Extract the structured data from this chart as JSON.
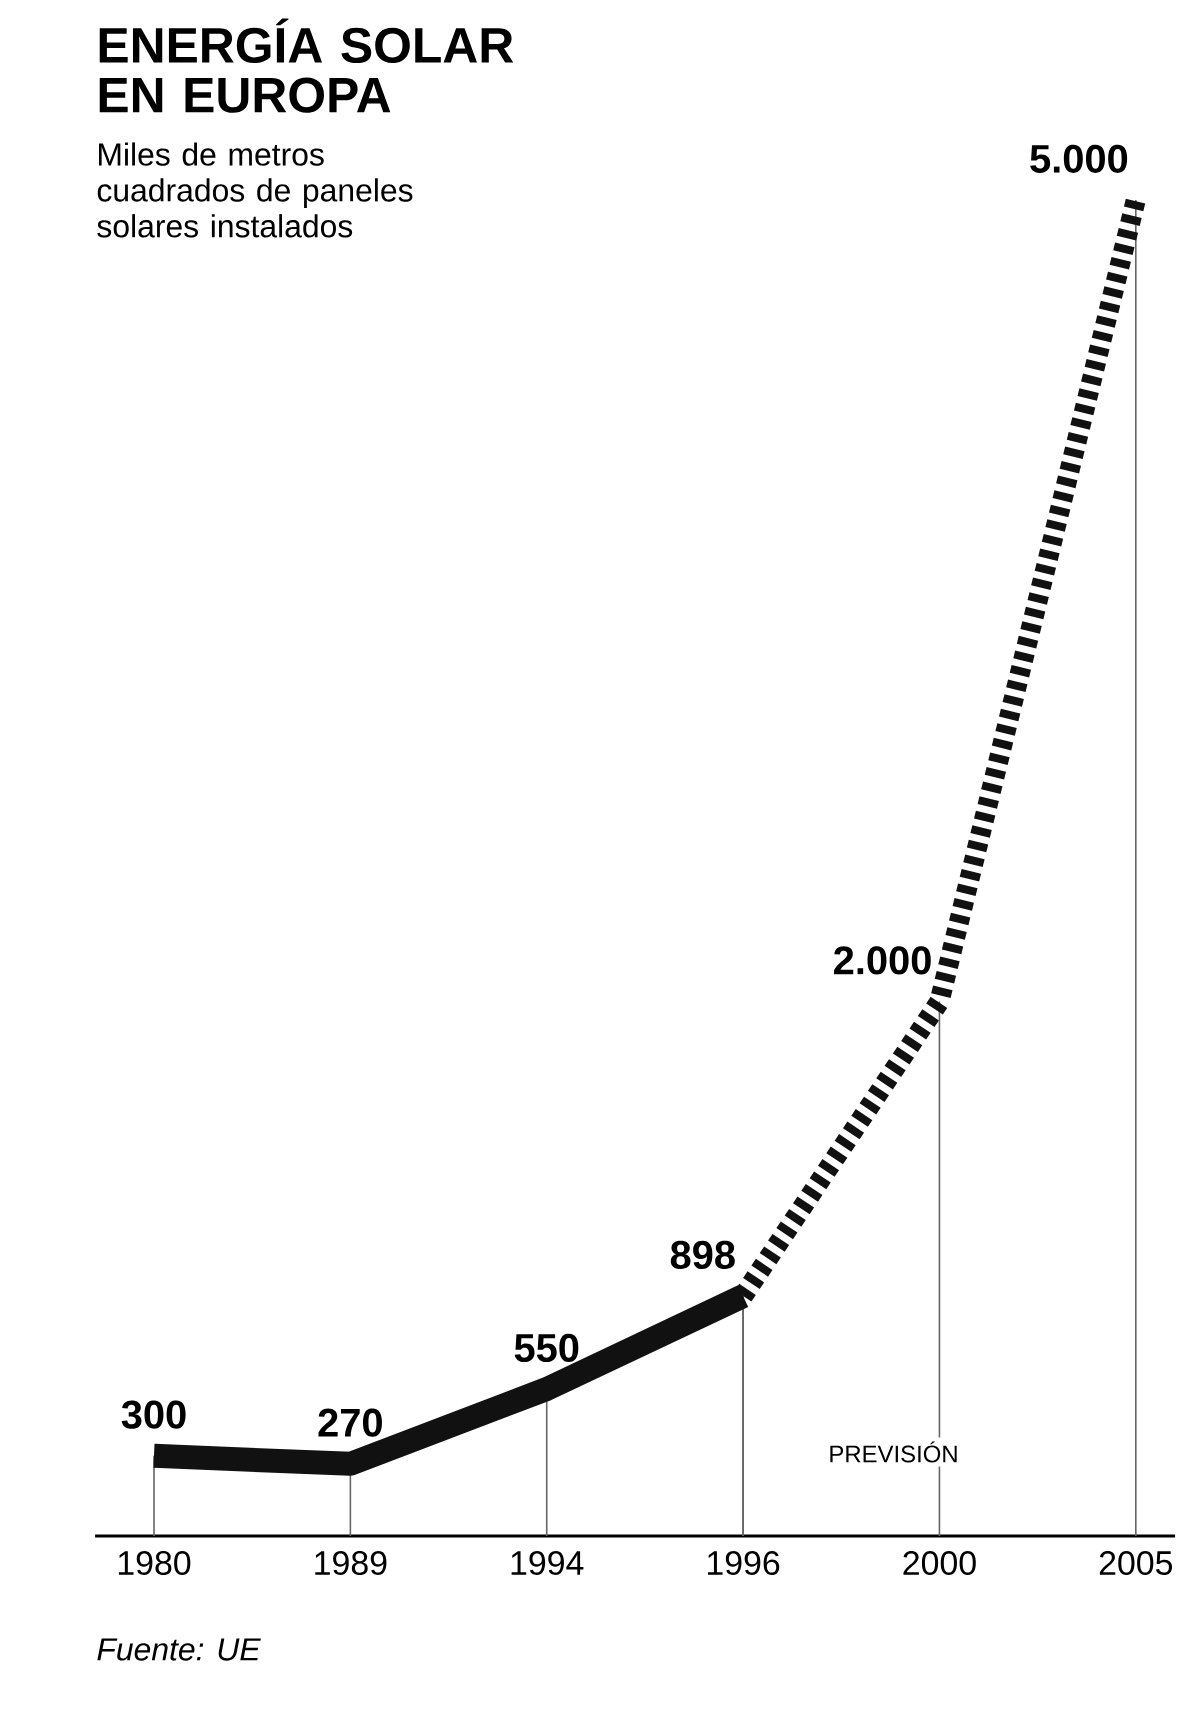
{
  "chart_data": {
    "type": "line",
    "title": "ENERGÍA SOLAR EN EUROPA",
    "subtitle": "Miles de metros cuadrados de paneles solares instalados",
    "categories": [
      "1980",
      "1989",
      "1994",
      "1996",
      "2000",
      "2005"
    ],
    "series": [
      {
        "color": "#111111",
        "line_style": "solid",
        "values": [
          300,
          270,
          550,
          898,
          null,
          null
        ],
        "value_labels": [
          "300",
          "270",
          "550",
          "898",
          null,
          null
        ]
      },
      {
        "color": "#111111",
        "line_style": "dashed",
        "values": [
          null,
          null,
          null,
          898,
          2000,
          5000
        ],
        "value_labels": [
          null,
          null,
          null,
          null,
          "2.000",
          "5.000"
        ]
      }
    ],
    "ylim": [
      0,
      5000
    ],
    "tick_labels": "x",
    "grid": "x",
    "annotations": [
      "PREVISIÓN",
      "Fuente: UE"
    ]
  }
}
